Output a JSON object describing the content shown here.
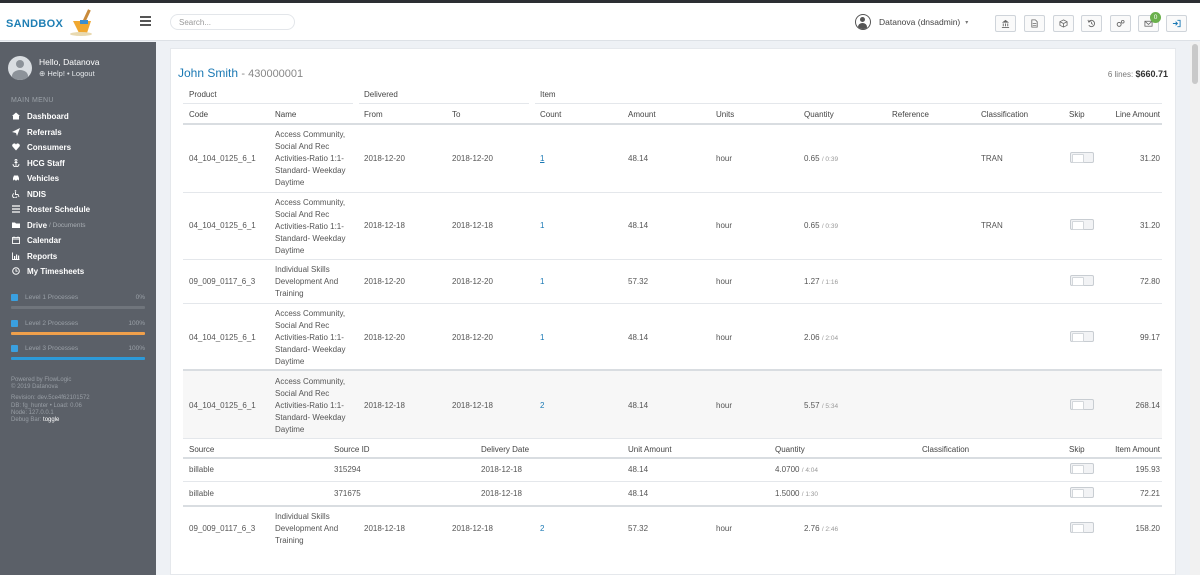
{
  "app": {
    "logo_text": "SANDBOX",
    "search_placeholder": "Search...",
    "user_name": "Datanova (dnsadmin)",
    "caret": "▾",
    "notifications_count": "0"
  },
  "sidebar": {
    "greeting": "Hello, Datanova",
    "help_link": "Help!",
    "separator": "•",
    "logout_link": "Logout",
    "menu_heading": "MAIN MENU",
    "items": [
      {
        "label": "Dashboard",
        "icon": "home-icon"
      },
      {
        "label": "Referrals",
        "icon": "send-icon"
      },
      {
        "label": "Consumers",
        "icon": "heart-icon"
      },
      {
        "label": "HCG Staff",
        "icon": "anchor-icon"
      },
      {
        "label": "Vehicles",
        "icon": "car-icon"
      },
      {
        "label": "NDIS",
        "icon": "wheelchair-icon"
      },
      {
        "label": "Roster Schedule",
        "icon": "list-icon"
      },
      {
        "label": "Drive",
        "sub": "/ Documents",
        "icon": "folder-icon"
      },
      {
        "label": "Calendar",
        "icon": "calendar-icon"
      },
      {
        "label": "Reports",
        "icon": "bar-chart-icon"
      },
      {
        "label": "My Timesheets",
        "icon": "clock-icon"
      }
    ],
    "processes": [
      {
        "label": "Level 1 Processes",
        "percent_text": "0%",
        "progress": 0,
        "color": "#3aa0e0"
      },
      {
        "label": "Level 2 Processes",
        "percent_text": "100%",
        "progress": 1,
        "color": "#f0a04b"
      },
      {
        "label": "Level 3 Processes",
        "percent_text": "100%",
        "progress": 1,
        "color": "#2d9ad8"
      }
    ],
    "footer": {
      "line1": "Powered by FlowLogic",
      "line2": "© 2019 Datanova",
      "line3": "Revision: dev.5ce4f62101572",
      "line4": "DB: fg_hunter • Load: 0.06",
      "line5": "Node: 127.0.0.1",
      "debug_label": "Debug Bar:",
      "debug_toggle": "toggle"
    }
  },
  "invoice": {
    "client_name": "John Smith",
    "client_id": "- 430000001",
    "lines_label": "6 lines:",
    "total": "$660.71"
  },
  "table": {
    "group_headers": {
      "product": "Product",
      "delivered": "Delivered",
      "item": "Item"
    },
    "columns": {
      "code": "Code",
      "name": "Name",
      "from": "From",
      "to": "To",
      "count": "Count",
      "amount": "Amount",
      "units": "Units",
      "quantity": "Quantity",
      "reference": "Reference",
      "classification": "Classification",
      "skip": "Skip",
      "line_amount": "Line Amount"
    },
    "rows": [
      {
        "code": "04_104_0125_6_1",
        "name": "Access Community, Social And Rec Activities-Ratio 1:1- Standard- Weekday Daytime",
        "from": "2018-12-20",
        "to": "2018-12-20",
        "count": "1",
        "amount": "48.14",
        "units": "hour",
        "qty": "0.65",
        "qty_max": "/ 0:39",
        "classification": "TRAN",
        "line_amount": "31.20"
      },
      {
        "code": "04_104_0125_6_1",
        "name": "Access Community, Social And Rec Activities-Ratio 1:1- Standard- Weekday Daytime",
        "from": "2018-12-18",
        "to": "2018-12-18",
        "count": "1",
        "amount": "48.14",
        "units": "hour",
        "qty": "0.65",
        "qty_max": "/ 0:39",
        "classification": "TRAN",
        "line_amount": "31.20"
      },
      {
        "code": "09_009_0117_6_3",
        "name": "Individual Skills Development And Training",
        "from": "2018-12-20",
        "to": "2018-12-20",
        "count": "1",
        "amount": "57.32",
        "units": "hour",
        "qty": "1.27",
        "qty_max": "/ 1:16",
        "classification": "",
        "line_amount": "72.80"
      },
      {
        "code": "04_104_0125_6_1",
        "name": "Access Community, Social And Rec Activities-Ratio 1:1- Standard- Weekday Daytime",
        "from": "2018-12-20",
        "to": "2018-12-20",
        "count": "1",
        "amount": "48.14",
        "units": "hour",
        "qty": "2.06",
        "qty_max": "/ 2:04",
        "classification": "",
        "line_amount": "99.17"
      },
      {
        "code": "04_104_0125_6_1",
        "name": "Access Community, Social And Rec Activities-Ratio 1:1- Standard- Weekday Daytime",
        "from": "2018-12-18",
        "to": "2018-12-18",
        "count": "2",
        "amount": "48.14",
        "units": "hour",
        "qty": "5.57",
        "qty_max": "/ 5:34",
        "classification": "",
        "line_amount": "268.14"
      },
      {
        "code": "09_009_0117_6_3",
        "name": "Individual Skills Development And Training",
        "from": "2018-12-18",
        "to": "2018-12-18",
        "count": "2",
        "amount": "57.32",
        "units": "hour",
        "qty": "2.76",
        "qty_max": "/ 2:46",
        "classification": "",
        "line_amount": "158.20"
      }
    ],
    "detail": {
      "columns": {
        "source": "Source",
        "source_id": "Source ID",
        "delivery_date": "Delivery Date",
        "unit_amount": "Unit Amount",
        "quantity": "Quantity",
        "classification": "Classification",
        "skip": "Skip",
        "item_amount": "Item Amount"
      },
      "rows": [
        {
          "source": "billable",
          "source_id": "315294",
          "delivery_date": "2018-12-18",
          "unit_amount": "48.14",
          "qty": "4.0700",
          "qty_max": "/ 4:04",
          "item_amount": "195.93"
        },
        {
          "source": "billable",
          "source_id": "371675",
          "delivery_date": "2018-12-18",
          "unit_amount": "48.14",
          "qty": "1.5000",
          "qty_max": "/ 1:30",
          "item_amount": "72.21"
        }
      ]
    }
  }
}
